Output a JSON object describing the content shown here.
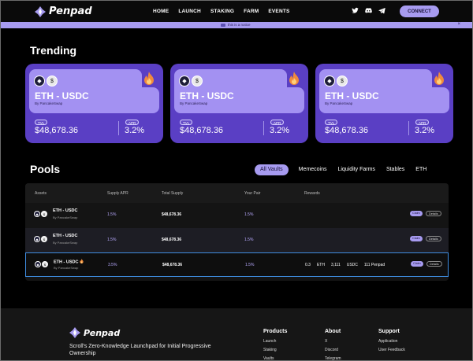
{
  "header": {
    "brand": "Penpad",
    "nav": [
      "HOME",
      "LAUNCH",
      "STAKING",
      "FARM",
      "EVENTS"
    ],
    "social_icons": [
      "twitter-icon",
      "discord-icon",
      "telegram-icon"
    ],
    "connect_label": "CONNECT"
  },
  "notice": {
    "text": "this is a notice",
    "close": "×"
  },
  "trending": {
    "title": "Trending",
    "cards": [
      {
        "pair": "ETH - USDC",
        "by": "By PancakeSwap",
        "tvl_label": "TVL",
        "tvl": "$48,678.36",
        "apr_label": "APR",
        "apr": "3.2%"
      },
      {
        "pair": "ETH - USDC",
        "by": "By PancakeSwap",
        "tvl_label": "TVL",
        "tvl": "$48,678.36",
        "apr_label": "APR",
        "apr": "3.2%"
      },
      {
        "pair": "ETH - USDC",
        "by": "By PancakeSwap",
        "tvl_label": "TVL",
        "tvl": "$48,678.36",
        "apr_label": "APR",
        "apr": "3.2%"
      }
    ]
  },
  "pools": {
    "title": "Pools",
    "filters": [
      "All Vaults",
      "Memecoins",
      "Liquidity Farms",
      "Stables",
      "ETH"
    ],
    "active_filter": "All Vaults",
    "columns": [
      "Assets",
      "Supply APR",
      "Total Supply",
      "Your Pair",
      "Rewards"
    ],
    "rows": [
      {
        "pair": "ETH - USDC",
        "by": "By PancakeSwap",
        "supply_apr": "1.5%",
        "total_supply": "$48,678.36",
        "your_pair": "1.5%",
        "rewards": [],
        "claim": "Claim",
        "details": "Details"
      },
      {
        "pair": "ETH - USDC",
        "by": "By PancakeSwap",
        "supply_apr": "1.5%",
        "total_supply": "$48,678.36",
        "your_pair": "1.5%",
        "rewards": [],
        "claim": "Claim",
        "details": "Details"
      },
      {
        "pair": "ETH - USDC",
        "by": "By PancakeSwap",
        "supply_apr": "3.5%",
        "total_supply": "$48,678.36",
        "your_pair": "1.5%",
        "rewards": [
          "0.3",
          "ETH",
          "3,111",
          "USDC",
          "111 Penpad"
        ],
        "claim": "Claim",
        "details": "Details"
      }
    ]
  },
  "footer": {
    "brand": "Penpad",
    "tagline": "Scroll's Zero-Knowledge Launchpad for Initial Progressive Ownership",
    "columns": [
      {
        "title": "Products",
        "items": [
          "Launch",
          "Staking",
          "Vaults"
        ]
      },
      {
        "title": "About",
        "items": [
          "X",
          "Discord",
          "Telegram"
        ]
      },
      {
        "title": "Support",
        "items": [
          "Application",
          "User Feedback"
        ]
      }
    ]
  },
  "colors": {
    "accent": "#a79bf0",
    "card": "#5a3fc4",
    "card_inner": "#a391f2",
    "selected_border": "#3f8de0"
  }
}
